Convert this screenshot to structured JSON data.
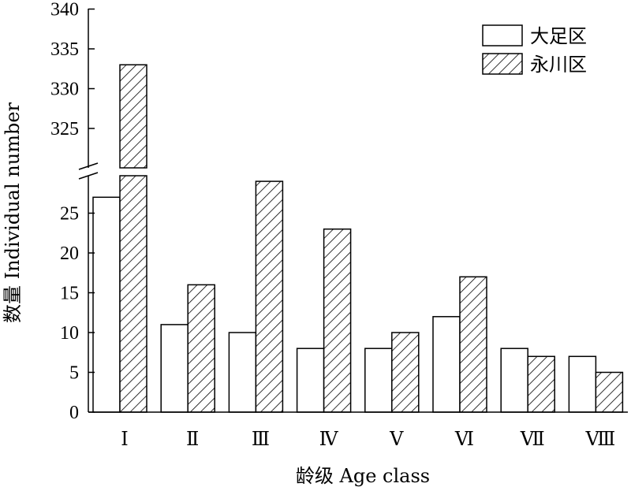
{
  "chart_data": {
    "type": "bar",
    "categories": [
      "Ⅰ",
      "Ⅱ",
      "Ⅲ",
      "Ⅳ",
      "Ⅴ",
      "Ⅵ",
      "Ⅶ",
      "Ⅷ"
    ],
    "series": [
      {
        "name": "大足区",
        "values": [
          27,
          11,
          10,
          8,
          8,
          12,
          8,
          7
        ],
        "fill": "#ffffff",
        "pattern": "none"
      },
      {
        "name": "永川区",
        "values": [
          333,
          16,
          29,
          23,
          10,
          17,
          7,
          5
        ],
        "fill": "#ffffff",
        "pattern": "diagonal-hatch"
      }
    ],
    "xlabel": "龄级  Age class",
    "ylabel": "数量 Individual number",
    "axis_break": {
      "lower_range": [
        0,
        29
      ],
      "upper_range": [
        320,
        340
      ]
    },
    "lower_ticks": [
      "0",
      "5",
      "10",
      "15",
      "20",
      "25"
    ],
    "upper_ticks": [
      "325",
      "330",
      "335",
      "340"
    ],
    "legend_position": "top-right",
    "grid": false,
    "colors": {
      "stroke": "#000000",
      "background": "#ffffff"
    }
  }
}
